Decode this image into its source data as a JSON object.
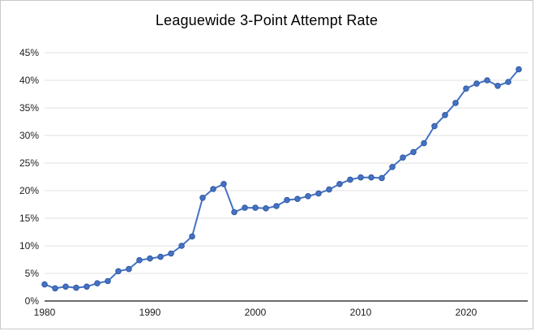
{
  "page": {
    "background": "#ffffff",
    "border_color": "#c9c9c9"
  },
  "chart_data": {
    "type": "line",
    "title": "Leaguewide 3-Point Attempt Rate",
    "xlabel": "",
    "ylabel": "",
    "unit": "%",
    "grid": true,
    "legend_position": "none",
    "xlim": [
      1980,
      2026
    ],
    "ylim": [
      0,
      45
    ],
    "x": [
      1980,
      1981,
      1982,
      1983,
      1984,
      1985,
      1986,
      1987,
      1988,
      1989,
      1990,
      1991,
      1992,
      1993,
      1994,
      1995,
      1996,
      1997,
      1998,
      1999,
      2000,
      2001,
      2002,
      2003,
      2004,
      2005,
      2006,
      2007,
      2008,
      2009,
      2010,
      2011,
      2012,
      2013,
      2014,
      2015,
      2016,
      2017,
      2018,
      2019,
      2020,
      2021,
      2022,
      2023,
      2024,
      2025
    ],
    "series": [
      {
        "name": "3-Point Attempt Rate",
        "values": [
          3.0,
          2.3,
          2.6,
          2.4,
          2.6,
          3.2,
          3.6,
          5.4,
          5.8,
          7.4,
          7.7,
          8.0,
          8.6,
          10.0,
          11.7,
          18.7,
          20.3,
          21.2,
          16.1,
          16.9,
          16.9,
          16.8,
          17.2,
          18.3,
          18.5,
          19.0,
          19.5,
          20.2,
          21.2,
          22.0,
          22.4,
          22.4,
          22.3,
          24.3,
          26.0,
          27.0,
          28.6,
          31.7,
          33.7,
          35.9,
          38.5,
          39.4,
          40.0,
          39.0,
          39.7,
          42.0
        ]
      }
    ],
    "y_ticks": [
      0,
      5,
      10,
      15,
      20,
      25,
      30,
      35,
      40,
      45
    ],
    "y_tick_labels": [
      "0%",
      "5%",
      "10%",
      "15%",
      "20%",
      "25%",
      "30%",
      "35%",
      "40%",
      "45%"
    ],
    "x_tick_years": [
      1980,
      1990,
      2000,
      2010,
      2020
    ],
    "x_tick_labels": [
      "1980",
      "1990",
      "2000",
      "2010",
      "2020"
    ],
    "colors": {
      "line": "#4472c4",
      "marker_fill": "#4472c4",
      "marker_stroke": "#31599f",
      "grid": "#e0e0e0",
      "axis": "#3c3c3c",
      "tick_label": "#1c1c1c",
      "title": "#000000"
    }
  }
}
